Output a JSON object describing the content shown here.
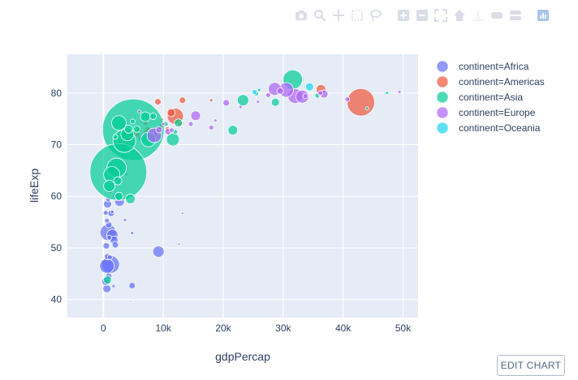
{
  "modebar": {
    "icons": [
      "camera-icon",
      "zoom-icon",
      "pan-icon",
      "box-select-icon",
      "lasso-icon",
      "zoom-in-icon",
      "zoom-out-icon",
      "autoscale-icon",
      "reset-axes-icon",
      "spike-lines-icon",
      "hover-closest-icon",
      "hover-compare-icon",
      "plotly-logo-icon"
    ]
  },
  "edit_chart_label": "EDIT CHART",
  "chart_data": {
    "type": "scatter",
    "title": "",
    "xlabel": "gdpPercap",
    "ylabel": "lifeExp",
    "xlim": [
      -6000,
      52500
    ],
    "ylim": [
      36.5,
      87.5
    ],
    "xticks": [
      0,
      10000,
      20000,
      30000,
      40000,
      50000
    ],
    "xtick_labels": [
      "0",
      "10k",
      "20k",
      "30k",
      "40k",
      "50k"
    ],
    "yticks": [
      40,
      50,
      60,
      70,
      80
    ],
    "ytick_labels": [
      "40",
      "50",
      "60",
      "70",
      "80"
    ],
    "grid": true,
    "legend_position": "right",
    "series": [
      {
        "name": "continent=Africa",
        "color": "#636efa",
        "points": [
          {
            "x": 1200,
            "y": 46.8,
            "r": 11
          },
          {
            "x": 600,
            "y": 46.5,
            "r": 9
          },
          {
            "x": 800,
            "y": 53.0,
            "r": 10
          },
          {
            "x": 1500,
            "y": 52.5,
            "r": 7
          },
          {
            "x": 9200,
            "y": 49.3,
            "r": 7
          },
          {
            "x": 700,
            "y": 58.5,
            "r": 5
          },
          {
            "x": 2700,
            "y": 59.0,
            "r": 6
          },
          {
            "x": 1800,
            "y": 51.5,
            "r": 5
          },
          {
            "x": 600,
            "y": 42.1,
            "r": 5
          },
          {
            "x": 4800,
            "y": 42.7,
            "r": 4
          },
          {
            "x": 400,
            "y": 43.5,
            "r": 5
          },
          {
            "x": 900,
            "y": 44.5,
            "r": 4
          },
          {
            "x": 700,
            "y": 48.3,
            "r": 4
          },
          {
            "x": 1100,
            "y": 48.2,
            "r": 3
          },
          {
            "x": 500,
            "y": 50.4,
            "r": 4
          },
          {
            "x": 2000,
            "y": 50.6,
            "r": 4
          },
          {
            "x": 900,
            "y": 54.5,
            "r": 4
          },
          {
            "x": 600,
            "y": 55.3,
            "r": 3
          },
          {
            "x": 1300,
            "y": 56.7,
            "r": 4
          },
          {
            "x": 400,
            "y": 56.8,
            "r": 3
          },
          {
            "x": 800,
            "y": 59.4,
            "r": 3
          },
          {
            "x": 2100,
            "y": 60.0,
            "r": 4
          },
          {
            "x": 1000,
            "y": 61.0,
            "r": 3
          },
          {
            "x": 1500,
            "y": 62.7,
            "r": 3
          },
          {
            "x": 3600,
            "y": 55.4,
            "r": 2
          },
          {
            "x": 4800,
            "y": 52.9,
            "r": 2
          },
          {
            "x": 1500,
            "y": 57.0,
            "r": 2
          },
          {
            "x": 1000,
            "y": 52.0,
            "r": 3
          },
          {
            "x": 3800,
            "y": 64.2,
            "r": 2
          },
          {
            "x": 6200,
            "y": 71.2,
            "r": 3
          },
          {
            "x": 7000,
            "y": 72.3,
            "r": 3
          },
          {
            "x": 12600,
            "y": 50.7,
            "r": 1.5
          },
          {
            "x": 13200,
            "y": 56.7,
            "r": 1.5
          },
          {
            "x": 4500,
            "y": 39.6,
            "r": 1.2
          },
          {
            "x": 1700,
            "y": 42.6,
            "r": 2
          }
        ]
      },
      {
        "name": "continent=Americas",
        "color": "#ef553b",
        "points": [
          {
            "x": 42950,
            "y": 78.2,
            "r": 17
          },
          {
            "x": 12000,
            "y": 75.5,
            "r": 10
          },
          {
            "x": 36300,
            "y": 80.7,
            "r": 6
          },
          {
            "x": 11300,
            "y": 76.2,
            "r": 5
          },
          {
            "x": 13200,
            "y": 78.6,
            "r": 4
          },
          {
            "x": 9100,
            "y": 78.3,
            "r": 4
          },
          {
            "x": 7400,
            "y": 72.9,
            "r": 4
          },
          {
            "x": 10700,
            "y": 73.0,
            "r": 3
          },
          {
            "x": 18000,
            "y": 78.6,
            "r": 2
          },
          {
            "x": 8900,
            "y": 72.5,
            "r": 3
          },
          {
            "x": 6000,
            "y": 72.8,
            "r": 3
          },
          {
            "x": 9700,
            "y": 73.7,
            "r": 3
          },
          {
            "x": 5700,
            "y": 71.9,
            "r": 3
          },
          {
            "x": 7000,
            "y": 74.2,
            "r": 3
          },
          {
            "x": 3800,
            "y": 70.3,
            "r": 3
          },
          {
            "x": 12800,
            "y": 74.0,
            "r": 3
          },
          {
            "x": 5000,
            "y": 72.2,
            "r": 3
          },
          {
            "x": 9800,
            "y": 74.9,
            "r": 2
          },
          {
            "x": 1200,
            "y": 60.9,
            "r": 2
          }
        ]
      },
      {
        "name": "continent=Asia",
        "color": "#00cc96",
        "points": [
          {
            "x": 5000,
            "y": 72.9,
            "r": 38
          },
          {
            "x": 2500,
            "y": 64.7,
            "r": 35
          },
          {
            "x": 3500,
            "y": 70.7,
            "r": 14
          },
          {
            "x": 2200,
            "y": 65.5,
            "r": 12
          },
          {
            "x": 31600,
            "y": 82.6,
            "r": 12
          },
          {
            "x": 1400,
            "y": 64.2,
            "r": 10
          },
          {
            "x": 7500,
            "y": 71.0,
            "r": 9
          },
          {
            "x": 2600,
            "y": 74.2,
            "r": 9
          },
          {
            "x": 11600,
            "y": 71.0,
            "r": 8
          },
          {
            "x": 4000,
            "y": 72.0,
            "r": 8
          },
          {
            "x": 23300,
            "y": 78.6,
            "r": 7
          },
          {
            "x": 1000,
            "y": 62.0,
            "r": 7
          },
          {
            "x": 4500,
            "y": 59.5,
            "r": 6
          },
          {
            "x": 21600,
            "y": 72.8,
            "r": 6
          },
          {
            "x": 12500,
            "y": 74.2,
            "r": 5
          },
          {
            "x": 4200,
            "y": 73.0,
            "r": 5
          },
          {
            "x": 7000,
            "y": 75.4,
            "r": 6
          },
          {
            "x": 2400,
            "y": 63.0,
            "r": 5
          },
          {
            "x": 2600,
            "y": 60.0,
            "r": 5
          },
          {
            "x": 28700,
            "y": 78.2,
            "r": 5
          },
          {
            "x": 44000,
            "y": 77.0,
            "r": 2
          },
          {
            "x": 47300,
            "y": 80.0,
            "r": 2
          },
          {
            "x": 25500,
            "y": 79.9,
            "r": 3
          },
          {
            "x": 700,
            "y": 43.8,
            "r": 5
          },
          {
            "x": 2000,
            "y": 71.5,
            "r": 3
          },
          {
            "x": 10400,
            "y": 74.0,
            "r": 3
          },
          {
            "x": 26000,
            "y": 80.6,
            "r": 2
          },
          {
            "x": 35700,
            "y": 79.5,
            "r": 3
          },
          {
            "x": 8300,
            "y": 75.5,
            "r": 4
          },
          {
            "x": 4900,
            "y": 74.5,
            "r": 3
          },
          {
            "x": 12000,
            "y": 72.5,
            "r": 3
          },
          {
            "x": 5600,
            "y": 73.0,
            "r": 4
          }
        ]
      },
      {
        "name": "continent=Europe",
        "color": "#ab63fa",
        "points": [
          {
            "x": 32000,
            "y": 79.4,
            "r": 9
          },
          {
            "x": 30500,
            "y": 80.6,
            "r": 9
          },
          {
            "x": 28600,
            "y": 80.8,
            "r": 8
          },
          {
            "x": 33200,
            "y": 79.3,
            "r": 8
          },
          {
            "x": 8500,
            "y": 71.8,
            "r": 9
          },
          {
            "x": 15400,
            "y": 75.6,
            "r": 6
          },
          {
            "x": 36800,
            "y": 79.8,
            "r": 5
          },
          {
            "x": 20500,
            "y": 78.1,
            "r": 4
          },
          {
            "x": 18000,
            "y": 73.3,
            "r": 3
          },
          {
            "x": 10800,
            "y": 72.5,
            "r": 4
          },
          {
            "x": 9300,
            "y": 72.9,
            "r": 4
          },
          {
            "x": 29500,
            "y": 80.4,
            "r": 4
          },
          {
            "x": 27500,
            "y": 79.6,
            "r": 3
          },
          {
            "x": 33700,
            "y": 79.4,
            "r": 3
          },
          {
            "x": 40700,
            "y": 78.8,
            "r": 3
          },
          {
            "x": 49400,
            "y": 80.2,
            "r": 2
          },
          {
            "x": 36200,
            "y": 80.0,
            "r": 3
          },
          {
            "x": 11400,
            "y": 72.8,
            "r": 3
          },
          {
            "x": 14600,
            "y": 74.0,
            "r": 3
          },
          {
            "x": 18700,
            "y": 74.7,
            "r": 2
          },
          {
            "x": 22900,
            "y": 77.3,
            "r": 2
          },
          {
            "x": 25800,
            "y": 78.3,
            "r": 2
          },
          {
            "x": 6000,
            "y": 76.4,
            "r": 2
          },
          {
            "x": 10000,
            "y": 74.0,
            "r": 2
          }
        ]
      },
      {
        "name": "continent=Oceania",
        "color": "#19d3f3",
        "points": [
          {
            "x": 34400,
            "y": 81.2,
            "r": 5
          },
          {
            "x": 25200,
            "y": 80.2,
            "r": 3
          }
        ]
      }
    ]
  }
}
